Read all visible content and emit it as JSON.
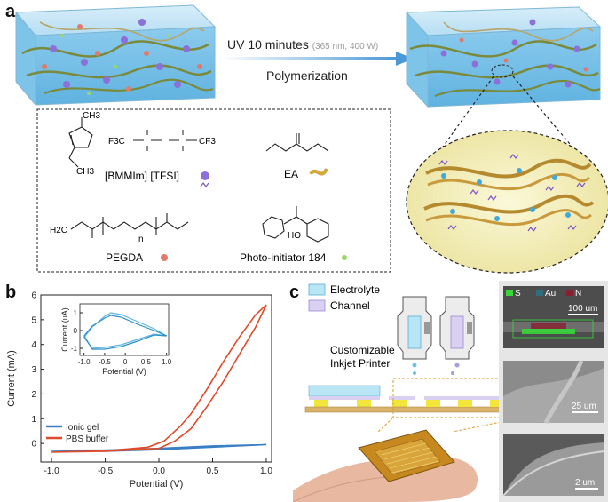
{
  "panel_a": {
    "letter": "a",
    "arrow_title": "UV 10 minutes",
    "arrow_conditions": "(365 nm, 400 W)",
    "arrow_subtitle": "Polymerization",
    "chemicals": {
      "bmmim_tfsi": "[BMMIm] [TFSI]",
      "ea": "EA",
      "pegda": "PEGDA",
      "photoinitiator": "Photo-initiator 184",
      "n_subscript": "n",
      "ch3_top": "CH3",
      "ch3_bottom": "CH3",
      "cf3_left": "F3C",
      "cf3_right": "CF3",
      "h2c": "H2C",
      "ho": "HO"
    },
    "colors": {
      "gel_blue": "#a9d8f0",
      "ionic_liquid": "#8c6fd8",
      "pegda": "#e07a6a",
      "photoinitiator": "#9ad86a",
      "ea": "#d4a93a",
      "zoom_bg": "#f3efc0"
    }
  },
  "panel_b": {
    "letter": "b",
    "inset_xlabel": "Potential (V)",
    "inset_ylabel": "Current (uA)",
    "inset_xticks": [
      "-1.0",
      "-0.5",
      "0",
      "0.5",
      "1.0"
    ],
    "inset_yticks": [
      "1",
      "0",
      "-1"
    ]
  },
  "chart_data": {
    "type": "line",
    "title": "",
    "xlabel": "Potential (V)",
    "ylabel": "Current (mA)",
    "xlim": [
      -1.1,
      1.05
    ],
    "ylim": [
      -0.75,
      6
    ],
    "xticks": [
      "-1.0",
      "-0.5",
      "0.0",
      "0.5",
      "1.0"
    ],
    "yticks": [
      "6",
      "5",
      "4",
      "3",
      "2",
      "1",
      "0"
    ],
    "legend_position": "lower-left",
    "series": [
      {
        "name": "Ionic gel",
        "color": "#3a7fc4",
        "x": [
          -1.0,
          -0.5,
          0.0,
          0.5,
          1.0,
          0.5,
          0.0,
          -0.5,
          -1.0
        ],
        "y": [
          -0.28,
          -0.27,
          -0.2,
          -0.1,
          -0.05,
          -0.15,
          -0.25,
          -0.32,
          -0.28
        ]
      },
      {
        "name": "PBS buffer",
        "color": "#e04b2a",
        "x": [
          -1.0,
          -0.5,
          -0.1,
          0.05,
          0.2,
          0.3,
          0.45,
          0.6,
          0.75,
          0.9,
          1.0,
          0.9,
          0.75,
          0.6,
          0.45,
          0.3,
          0.15,
          0.0,
          -0.5,
          -1.0
        ],
        "y": [
          -0.35,
          -0.3,
          -0.15,
          0.1,
          0.7,
          1.2,
          2.2,
          3.3,
          4.3,
          5.2,
          5.6,
          4.7,
          3.6,
          2.5,
          1.5,
          0.6,
          0.1,
          -0.2,
          -0.32,
          -0.35
        ]
      }
    ],
    "inset": {
      "type": "line",
      "xlabel": "Potential (V)",
      "ylabel": "Current (uA)",
      "xlim": [
        -1.1,
        1.05
      ],
      "ylim": [
        -1.4,
        1.5
      ],
      "series": [
        {
          "name": "",
          "color": "#63b6e0",
          "x": [
            -1.0,
            -0.8,
            -0.5,
            -0.35,
            -0.1,
            0.3,
            0.7,
            1.0,
            0.7,
            0.3,
            -0.1,
            -0.5,
            -0.8,
            -1.0
          ],
          "y": [
            -0.4,
            0.2,
            0.8,
            1.0,
            0.9,
            0.5,
            0.1,
            -0.3,
            -0.2,
            -0.5,
            -0.8,
            -0.95,
            -1.0,
            -0.4
          ]
        },
        {
          "name": "",
          "color": "#2d8fc8",
          "x": [
            -1.0,
            -0.8,
            -0.5,
            -0.35,
            -0.1,
            0.3,
            0.7,
            1.0,
            0.7,
            0.3,
            -0.1,
            -0.5,
            -0.8,
            -1.0
          ],
          "y": [
            -0.3,
            0.25,
            0.7,
            0.85,
            0.75,
            0.35,
            0.0,
            -0.3,
            -0.25,
            -0.6,
            -0.9,
            -1.05,
            -1.05,
            -0.3
          ]
        }
      ]
    }
  },
  "panel_c": {
    "letter": "c",
    "legend_electrolyte": "Electrolyte",
    "legend_channel": "Channel",
    "printer_label_line1": "Customizable",
    "printer_label_line2": "Inkjet Printer",
    "colors": {
      "electrolyte": "#b9e6f5",
      "channel": "#d9d0f2",
      "substrate": "#d9b36a",
      "electrode": "#f2e63a"
    },
    "sem": {
      "legend": [
        "S",
        "Au",
        "N"
      ],
      "legend_colors": [
        "#39d63a",
        "#2f6f7d",
        "#8a1f2f"
      ],
      "scale_top": "100 um",
      "scale_middle": "25 um",
      "scale_bottom": "2 um"
    }
  }
}
